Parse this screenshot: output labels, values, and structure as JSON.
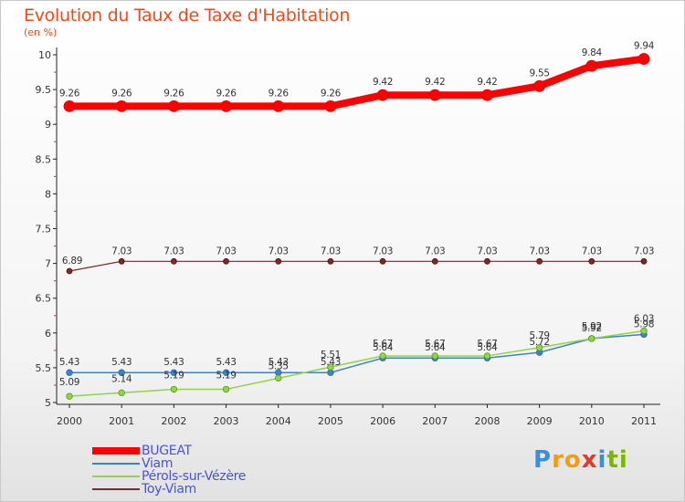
{
  "header": {
    "title": "Evolution du Taux de Taxe d'Habitation",
    "unit": "(en %)"
  },
  "logo": {
    "text": "Proxiti",
    "letters": [
      {
        "ch": "P",
        "color": "#3b8fd6"
      },
      {
        "ch": "r",
        "color": "#f39c12"
      },
      {
        "ch": "o",
        "color": "#f39c12"
      },
      {
        "ch": "x",
        "color": "#e23a2a"
      },
      {
        "ch": "i",
        "color": "#3b8fd6"
      },
      {
        "ch": "t",
        "color": "#7ab800"
      },
      {
        "ch": "i",
        "color": "#7ab800"
      }
    ]
  },
  "chart_data": {
    "type": "line",
    "title": "Evolution du Taux de Taxe d'Habitation",
    "ylabel": "(en %)",
    "xlabel": "",
    "x": [
      "2000",
      "2001",
      "2002",
      "2003",
      "2004",
      "2005",
      "2006",
      "2007",
      "2008",
      "2009",
      "2010",
      "2011"
    ],
    "ylim": [
      5,
      10
    ],
    "yticks": [
      5,
      5.5,
      6,
      6.5,
      7,
      7.5,
      8,
      8.5,
      9,
      9.5,
      10
    ],
    "legend_position": "bottom-left",
    "grid": false,
    "series": [
      {
        "name": "BUGEAT",
        "color": "#ff0000",
        "values": [
          9.26,
          9.26,
          9.26,
          9.26,
          9.26,
          9.26,
          9.42,
          9.42,
          9.42,
          9.55,
          9.84,
          9.94
        ],
        "labels": [
          "9.26",
          "9.26",
          "9.26",
          "9.26",
          "9.26",
          "9.26",
          "9.42",
          "9.42",
          "9.42",
          "9.55",
          "9.84",
          "9.94"
        ]
      },
      {
        "name": "Viam",
        "color": "#3d83c8",
        "values": [
          5.43,
          5.43,
          5.43,
          5.43,
          5.43,
          5.43,
          5.64,
          5.64,
          5.64,
          5.72,
          5.92,
          5.98
        ],
        "labels": [
          "5.43",
          "5.43",
          "5.43",
          "5.43",
          "5.43",
          "5.43",
          "5.64",
          "5.64",
          "5.64",
          "5.72",
          "5.92",
          "5.98"
        ]
      },
      {
        "name": "Pérols-sur-Vézère",
        "color": "#8fd44a",
        "values": [
          5.09,
          5.14,
          5.19,
          5.19,
          5.35,
          5.51,
          5.67,
          5.67,
          5.67,
          5.79,
          5.92,
          6.03
        ],
        "labels": [
          "5.09",
          "5.14",
          "5.19",
          "5.19",
          "5.35",
          "5.51",
          "5.67",
          "5.67",
          "5.67",
          "5.79",
          "5.92",
          "6.03"
        ]
      },
      {
        "name": "Toy-Viam",
        "color": "#7a2a2a",
        "values": [
          6.89,
          7.03,
          7.03,
          7.03,
          7.03,
          7.03,
          7.03,
          7.03,
          7.03,
          7.03,
          7.03,
          7.03
        ],
        "labels": [
          "6.89",
          "7.03",
          "7.03",
          "7.03",
          "7.03",
          "7.03",
          "7.03",
          "7.03",
          "7.03",
          "7.03",
          "7.03",
          "7.03"
        ]
      }
    ]
  }
}
